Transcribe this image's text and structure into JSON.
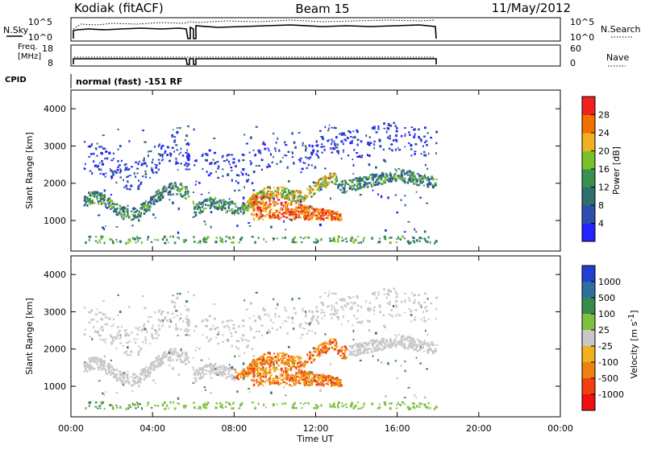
{
  "header": {
    "station": "Kodiak (fitACF)",
    "beam": "Beam 15",
    "date": "11/May/2012"
  },
  "strip_labels": {
    "nsky": "N.Sky",
    "nsearch": "N.Search",
    "freq_line1": "Freq.",
    "freq_line2": "[MHz]",
    "nave": "Nave",
    "cpid": "CPID",
    "mode_text": "normal (fast) -151 RF"
  },
  "strip_ticks": {
    "noise_left": [
      "10^5",
      "10^0"
    ],
    "noise_right": [
      "10^5",
      "10^0"
    ],
    "freq_left": [
      "18",
      "8"
    ],
    "nave_right": [
      "60",
      "0"
    ]
  },
  "colors": {
    "power_scale": [
      "#2323ff",
      "#2e4fb0",
      "#2e6f70",
      "#3a9050",
      "#79c02a",
      "#f0b020",
      "#f07000",
      "#f02020"
    ],
    "velocity_scale": [
      "#2040d0",
      "#2e6fa0",
      "#3a8a50",
      "#80c040",
      "#c8c8c8",
      "#f0b020",
      "#f08010",
      "#f04010",
      "#f01010"
    ]
  },
  "chart_data": [
    {
      "type": "heatmap",
      "title": "",
      "xlabel": "Time UT",
      "ylabel": "Slant Range [km]",
      "colorbar_label": "Power [dB]",
      "x_ticks": [
        "00:00",
        "04:00",
        "08:00",
        "12:00",
        "16:00",
        "20:00",
        "00:00"
      ],
      "y_ticks": [
        1000,
        2000,
        3000,
        4000
      ],
      "xlim_hours": [
        0,
        24
      ],
      "ylim_km": [
        180,
        4500
      ],
      "colorbar_ticks": [
        4,
        8,
        12,
        16,
        20,
        24,
        28
      ],
      "colorbar_range": [
        0,
        32
      ],
      "grid": false
    },
    {
      "type": "heatmap",
      "title": "",
      "xlabel": "Time UT",
      "ylabel": "Slant Range [km]",
      "colorbar_label": "Velocity [m s-1]",
      "colorbar_label_main": "Velocity [m s",
      "colorbar_label_sup": "-1",
      "colorbar_label_end": "]",
      "x_ticks": [
        "00:00",
        "04:00",
        "08:00",
        "12:00",
        "16:00",
        "20:00",
        "00:00"
      ],
      "y_ticks": [
        1000,
        2000,
        3000,
        4000
      ],
      "xlim_hours": [
        0,
        24
      ],
      "ylim_km": [
        180,
        4500
      ],
      "colorbar_ticks": [
        "1000",
        "500",
        "100",
        "25",
        "-25",
        "-100",
        "-500",
        "-1000"
      ],
      "grid": false
    }
  ]
}
